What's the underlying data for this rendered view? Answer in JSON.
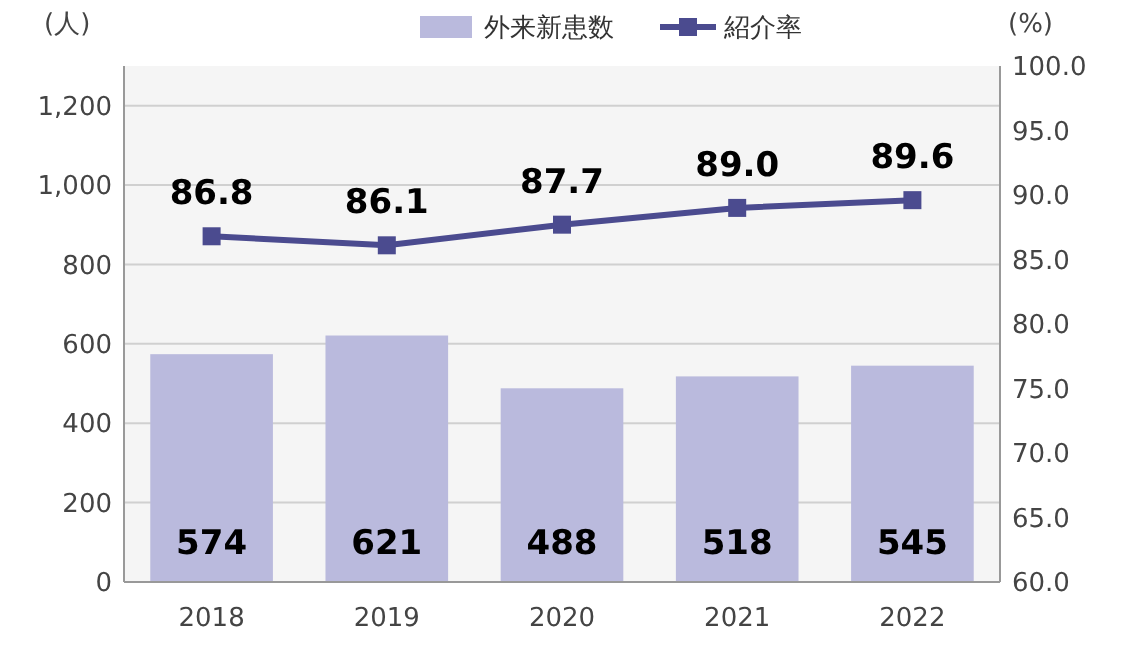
{
  "chart_data": {
    "type": "bar",
    "categories": [
      "2018",
      "2019",
      "2020",
      "2021",
      "2022"
    ],
    "series": [
      {
        "name": "外来新患数",
        "color": "#babadd",
        "values": [
          574,
          621,
          488,
          518,
          545
        ]
      },
      {
        "name": "紹介率",
        "type": "line",
        "axis": "y2",
        "color": "#4b4b8f",
        "values": [
          86.8,
          86.1,
          87.7,
          89.0,
          89.6
        ]
      }
    ],
    "ylabel": "(人)",
    "y2label": "(%)",
    "ylim": [
      0,
      1300
    ],
    "yticks": [
      0,
      200,
      400,
      600,
      800,
      {
        "value": 1000,
        "label": "1,000"
      },
      {
        "value": 1200,
        "label": "1,200"
      }
    ],
    "y2lim": [
      60,
      100
    ],
    "y2ticks": [
      {
        "value": 60,
        "label": "60.0"
      },
      {
        "value": 65,
        "label": "65.0"
      },
      {
        "value": 70,
        "label": "70.0"
      },
      {
        "value": 75,
        "label": "75.0"
      },
      {
        "value": 80,
        "label": "80.0"
      },
      {
        "value": 85,
        "label": "85.0"
      },
      {
        "value": 90,
        "label": "90.0"
      },
      {
        "value": 95,
        "label": "95.0"
      },
      {
        "value": 100,
        "label": "100.0"
      }
    ],
    "value_labels": [
      [
        "574",
        "621",
        "488",
        "518",
        "545"
      ],
      [
        "86.8",
        "86.1",
        "87.7",
        "89.0",
        "89.6"
      ]
    ],
    "grid": "y",
    "legend": "top",
    "marker": "square",
    "line_style": "solid"
  }
}
